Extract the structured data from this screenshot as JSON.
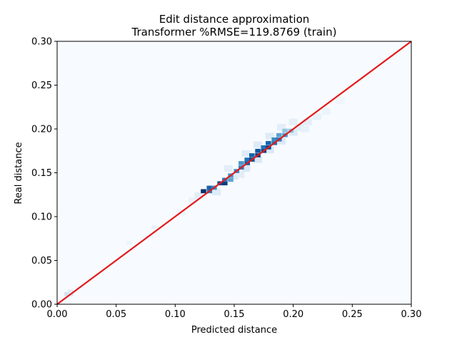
{
  "chart_data": {
    "type": "heatmap",
    "title": "Edit distance approximation",
    "subtitle": "Transformer %RMSE=119.8769 (train)",
    "xlabel": "Predicted distance",
    "ylabel": "Real distance",
    "xlim": [
      0.0,
      0.3
    ],
    "ylim": [
      0.0,
      0.3
    ],
    "xticks": [
      "0.00",
      "0.05",
      "0.10",
      "0.15",
      "0.20",
      "0.25",
      "0.30"
    ],
    "yticks": [
      "0.00",
      "0.05",
      "0.10",
      "0.15",
      "0.20",
      "0.25",
      "0.30"
    ],
    "xtick_values": [
      0.0,
      0.05,
      0.1,
      0.15,
      0.2,
      0.25,
      0.3
    ],
    "ytick_values": [
      0.0,
      0.05,
      0.1,
      0.15,
      0.2,
      0.25,
      0.3
    ],
    "colormap": "Blues",
    "grid": false,
    "reference_line": {
      "x": [
        0.0,
        0.3
      ],
      "y": [
        0.0,
        0.3
      ],
      "color": "#e31a1c"
    },
    "cells": [
      [
        0.0085,
        0.0115,
        0.2
      ],
      [
        0.0115,
        0.0115,
        0.15
      ],
      [
        0.0115,
        0.0145,
        0.12
      ],
      [
        0.082,
        0.088,
        0.08
      ],
      [
        0.061,
        0.07,
        0.05
      ],
      [
        0.124,
        0.129,
        1.0
      ],
      [
        0.129,
        0.129,
        0.7
      ],
      [
        0.129,
        0.133,
        0.8
      ],
      [
        0.133,
        0.133,
        0.65
      ],
      [
        0.138,
        0.138,
        0.9
      ],
      [
        0.142,
        0.138,
        0.95
      ],
      [
        0.142,
        0.142,
        0.7
      ],
      [
        0.147,
        0.142,
        0.55
      ],
      [
        0.147,
        0.147,
        0.6
      ],
      [
        0.152,
        0.152,
        0.65
      ],
      [
        0.156,
        0.156,
        0.7
      ],
      [
        0.156,
        0.161,
        0.6
      ],
      [
        0.161,
        0.161,
        0.85
      ],
      [
        0.161,
        0.165,
        0.75
      ],
      [
        0.165,
        0.165,
        0.9
      ],
      [
        0.165,
        0.17,
        0.8
      ],
      [
        0.17,
        0.17,
        0.95
      ],
      [
        0.17,
        0.175,
        0.85
      ],
      [
        0.175,
        0.175,
        0.95
      ],
      [
        0.175,
        0.179,
        0.75
      ],
      [
        0.179,
        0.179,
        0.9
      ],
      [
        0.179,
        0.184,
        0.8
      ],
      [
        0.184,
        0.184,
        0.75
      ],
      [
        0.184,
        0.188,
        0.65
      ],
      [
        0.188,
        0.188,
        0.7
      ],
      [
        0.188,
        0.193,
        0.55
      ],
      [
        0.193,
        0.193,
        0.6
      ],
      [
        0.193,
        0.198,
        0.4
      ],
      [
        0.198,
        0.198,
        0.4
      ]
    ]
  }
}
